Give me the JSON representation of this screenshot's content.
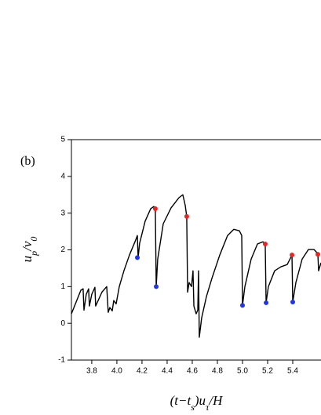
{
  "chart_data": {
    "type": "line",
    "annotation": "(b)",
    "x_label": [
      "(t−t",
      "s",
      ")u",
      "τ",
      "/H"
    ],
    "y_label": [
      "u",
      "p",
      "/v",
      "0"
    ],
    "xlim": [
      3.638,
      5.625
    ],
    "ylim": [
      -1,
      5
    ],
    "xticks": [
      3.8,
      {
        "value": 4.0,
        "label": "4.0"
      },
      4.2,
      4.4,
      4.6,
      4.8,
      {
        "value": 5.0,
        "label": "5.0"
      },
      5.2,
      5.4
    ],
    "yticks": [
      -1,
      0,
      1,
      2,
      3,
      4,
      5
    ],
    "series": [
      {
        "color": "#000000",
        "style": "line",
        "x": [
          3.638,
          3.713,
          3.731,
          3.738,
          3.756,
          3.775,
          3.781,
          3.8,
          3.825,
          3.831,
          3.881,
          3.919,
          3.931,
          3.944,
          3.963,
          3.975,
          3.994,
          4.019,
          4.056,
          4.1,
          4.144,
          4.163,
          4.169,
          4.181,
          4.225,
          4.269,
          4.294,
          4.306,
          4.313,
          4.325,
          4.369,
          4.431,
          4.494,
          4.525,
          4.544,
          4.556,
          4.563,
          4.575,
          4.594,
          4.606,
          4.613,
          4.631,
          4.644,
          4.65,
          4.656,
          4.675,
          4.713,
          4.756,
          4.819,
          4.881,
          4.931,
          4.975,
          4.994,
          5.0,
          5.019,
          5.069,
          5.119,
          5.163,
          5.175,
          5.181,
          5.188,
          5.206,
          5.256,
          5.306,
          5.356,
          5.381,
          5.394,
          5.4,
          5.425,
          5.475,
          5.525,
          5.569,
          5.594,
          5.6,
          5.606,
          5.625
        ],
        "values": [
          0.26,
          0.9,
          0.94,
          0.36,
          0.79,
          0.94,
          0.47,
          0.79,
          0.98,
          0.47,
          0.85,
          1.0,
          0.3,
          0.43,
          0.34,
          0.62,
          0.53,
          1.0,
          1.43,
          1.86,
          2.22,
          2.39,
          1.79,
          2.18,
          2.78,
          3.12,
          3.18,
          3.12,
          1.0,
          1.75,
          2.71,
          3.14,
          3.42,
          3.5,
          3.21,
          2.91,
          0.85,
          1.11,
          1.0,
          1.43,
          0.47,
          0.26,
          0.36,
          1.43,
          -0.38,
          0.15,
          0.73,
          1.22,
          1.86,
          2.39,
          2.56,
          2.52,
          2.39,
          0.49,
          1.0,
          1.75,
          2.16,
          2.22,
          2.18,
          2.16,
          0.56,
          1.0,
          1.43,
          1.54,
          1.6,
          1.77,
          1.86,
          0.58,
          1.11,
          1.75,
          2.01,
          2.01,
          1.92,
          1.88,
          1.43,
          1.65
        ]
      },
      {
        "color": "#ee2222",
        "style": "dots",
        "x": [
          4.306,
          4.556,
          5.181,
          5.394,
          5.6
        ],
        "values": [
          3.12,
          2.91,
          2.16,
          1.86,
          1.88
        ]
      },
      {
        "color": "#2233ee",
        "style": "dots",
        "x": [
          4.163,
          4.313,
          5.0,
          5.188,
          5.4
        ],
        "values": [
          1.79,
          1.0,
          0.49,
          0.56,
          0.58
        ]
      }
    ]
  }
}
